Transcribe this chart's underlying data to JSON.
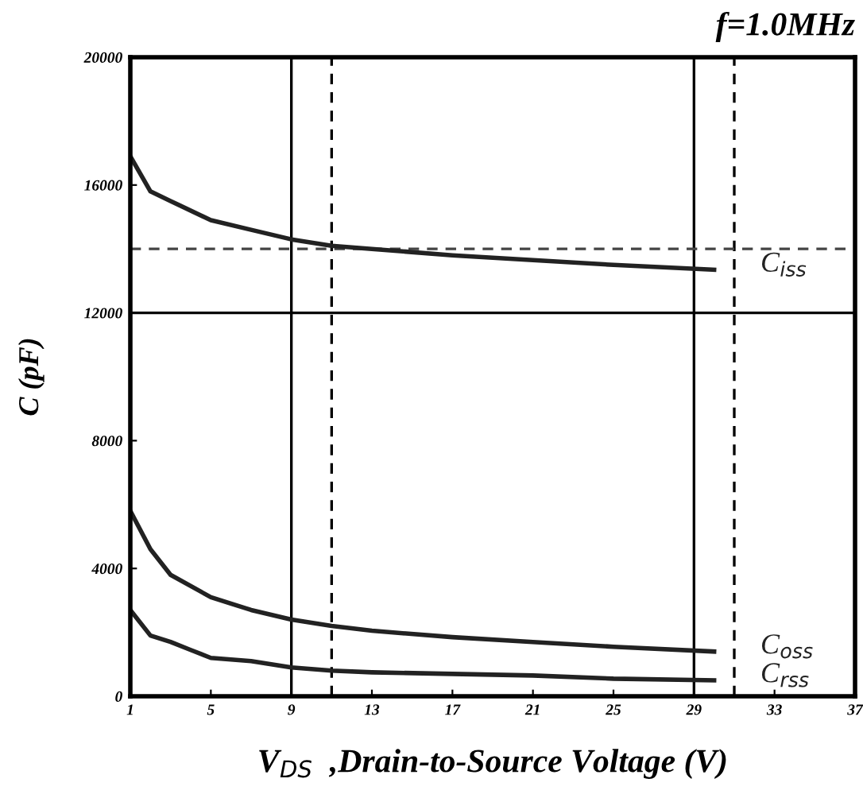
{
  "chart_data": {
    "type": "line",
    "title": "f=1.0MHz",
    "xlabel": "V$_{DS}$  ,Drain-to-Source Voltage (V)",
    "ylabel": "C (pF)",
    "xlim": [
      1,
      37
    ],
    "xticks": [
      1,
      5,
      9,
      13,
      17,
      21,
      25,
      29,
      33,
      37
    ],
    "ylim": [
      0,
      20000
    ],
    "yticks": [
      0,
      4000,
      8000,
      12000,
      16000,
      20000
    ],
    "grid": false,
    "legend": false,
    "series": [
      {
        "name": "C$_{iss}$",
        "color": "#222222",
        "x": [
          1,
          2,
          3,
          5,
          7,
          9,
          11,
          13,
          17,
          21,
          25,
          30
        ],
        "values": [
          16900,
          15800,
          15500,
          14900,
          14600,
          14300,
          14100,
          14000,
          13800,
          13650,
          13500,
          13350
        ]
      },
      {
        "name": "C$_{oss}$",
        "color": "#222222",
        "x": [
          1,
          2,
          3,
          5,
          7,
          9,
          11,
          13,
          17,
          21,
          25,
          30
        ],
        "values": [
          5800,
          4600,
          3800,
          3100,
          2700,
          2400,
          2200,
          2050,
          1850,
          1700,
          1550,
          1400
        ]
      },
      {
        "name": "C$_{rss}$",
        "color": "#222222",
        "x": [
          1,
          2,
          3,
          4,
          5,
          7,
          9,
          11,
          13,
          17,
          21,
          25,
          30
        ],
        "values": [
          2700,
          1900,
          1700,
          1450,
          1200,
          1100,
          900,
          800,
          750,
          700,
          650,
          550,
          500
        ]
      }
    ],
    "ref_lines": [
      {
        "axis": "x",
        "value": 9,
        "line_style": "solid",
        "color": "#000000"
      },
      {
        "axis": "x",
        "value": 11,
        "line_style": "dashed",
        "color": "#000000"
      },
      {
        "axis": "x",
        "value": 29,
        "line_style": "solid",
        "color": "#000000"
      },
      {
        "axis": "x",
        "value": 31,
        "line_style": "dashed",
        "color": "#000000"
      },
      {
        "axis": "y",
        "value": 12000,
        "line_style": "solid",
        "color": "#000000"
      },
      {
        "axis": "y",
        "value": 14000,
        "line_style": "dashed",
        "color": "#444444"
      }
    ]
  }
}
